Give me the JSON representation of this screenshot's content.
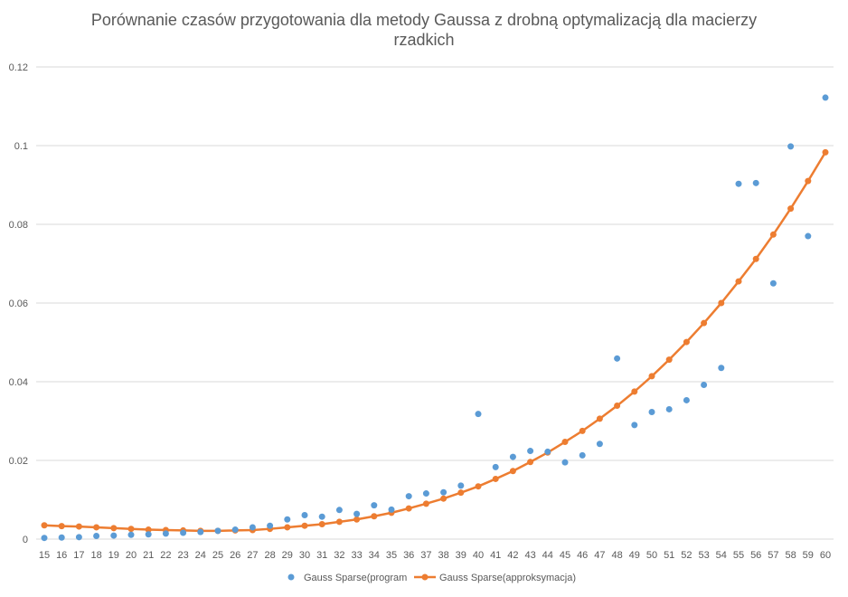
{
  "chart_data": {
    "type": "scatter",
    "title_lines": [
      "Porównanie czasów przygotowania dla metody Gaussa z drobną optymalizacją dla macierzy",
      "rzadkich"
    ],
    "xlabel": "",
    "ylabel": "",
    "ylim": [
      0,
      0.12
    ],
    "yticks": [
      "0",
      "0.02",
      "0.04",
      "0.06",
      "0.08",
      "0.1",
      "0.12"
    ],
    "grid": "horizontal",
    "legend_position": "bottom",
    "categories": [
      15,
      16,
      17,
      18,
      19,
      20,
      21,
      22,
      23,
      24,
      25,
      26,
      27,
      28,
      29,
      30,
      31,
      32,
      33,
      34,
      35,
      36,
      37,
      38,
      39,
      40,
      41,
      42,
      43,
      44,
      45,
      46,
      47,
      48,
      49,
      50,
      51,
      52,
      53,
      54,
      55,
      56,
      57,
      58,
      59,
      60
    ],
    "series": [
      {
        "name": "Gauss Sparse(program",
        "style": "markers",
        "color": "#5B9BD5",
        "values": [
          0.0003,
          0.0004,
          0.0005,
          0.0008,
          0.0009,
          0.0011,
          0.0012,
          0.0014,
          0.0016,
          0.0018,
          0.0021,
          0.0024,
          0.003,
          0.0034,
          0.005,
          0.0061,
          0.0057,
          0.0074,
          0.0064,
          0.0086,
          0.0075,
          0.0109,
          0.0116,
          0.0119,
          0.0136,
          0.0318,
          0.0183,
          0.0209,
          0.0224,
          0.0222,
          0.0195,
          0.0213,
          0.0242,
          0.0459,
          0.029,
          0.0323,
          0.033,
          0.0353,
          0.0392,
          0.0435,
          0.0903,
          0.0905,
          0.065,
          0.0998,
          0.077,
          0.1122
        ]
      },
      {
        "name": "Gauss Sparse(approksymacja)",
        "style": "line+markers",
        "color": "#ED7D31",
        "values": [
          0.0035,
          0.0033,
          0.0032,
          0.003,
          0.0028,
          0.0026,
          0.0024,
          0.0023,
          0.0022,
          0.0021,
          0.0021,
          0.0022,
          0.0023,
          0.0026,
          0.003,
          0.0034,
          0.0038,
          0.0044,
          0.005,
          0.0058,
          0.0067,
          0.0078,
          0.009,
          0.0103,
          0.0118,
          0.0134,
          0.0153,
          0.0173,
          0.0196,
          0.022,
          0.0247,
          0.0275,
          0.0306,
          0.0339,
          0.0375,
          0.0414,
          0.0456,
          0.0501,
          0.0549,
          0.06,
          0.0655,
          0.0712,
          0.0774,
          0.084,
          0.091,
          0.0983
        ]
      }
    ]
  }
}
